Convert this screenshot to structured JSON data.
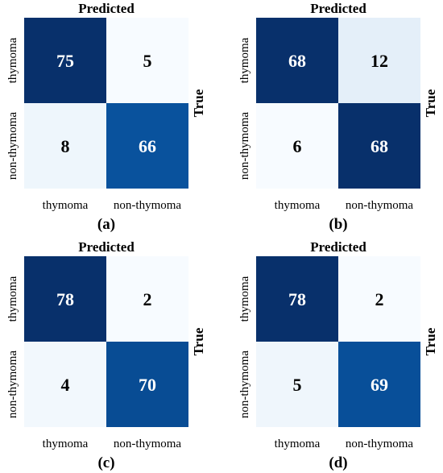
{
  "chart_data": [
    {
      "type": "heatmap",
      "panel_label": "(a)",
      "title": "Predicted",
      "ylabel": "True",
      "x_categories": [
        "thymoma",
        "non-thymoma"
      ],
      "y_categories": [
        "thymoma",
        "non-thymoma"
      ],
      "values": [
        [
          75,
          5
        ],
        [
          8,
          66
        ]
      ],
      "colormap": "Blues"
    },
    {
      "type": "heatmap",
      "panel_label": "(b)",
      "title": "Predicted",
      "ylabel": "True",
      "x_categories": [
        "thymoma",
        "non-thymoma"
      ],
      "y_categories": [
        "thymoma",
        "non-thymoma"
      ],
      "values": [
        [
          68,
          12
        ],
        [
          6,
          68
        ]
      ],
      "colormap": "Blues"
    },
    {
      "type": "heatmap",
      "panel_label": "(c)",
      "title": "Predicted",
      "ylabel": "True",
      "x_categories": [
        "thymoma",
        "non-thymoma"
      ],
      "y_categories": [
        "thymoma",
        "non-thymoma"
      ],
      "values": [
        [
          78,
          2
        ],
        [
          4,
          70
        ]
      ],
      "colormap": "Blues"
    },
    {
      "type": "heatmap",
      "panel_label": "(d)",
      "title": "Predicted",
      "ylabel": "True",
      "x_categories": [
        "thymoma",
        "non-thymoma"
      ],
      "y_categories": [
        "thymoma",
        "non-thymoma"
      ],
      "values": [
        [
          78,
          2
        ],
        [
          5,
          69
        ]
      ],
      "colormap": "Blues"
    }
  ]
}
